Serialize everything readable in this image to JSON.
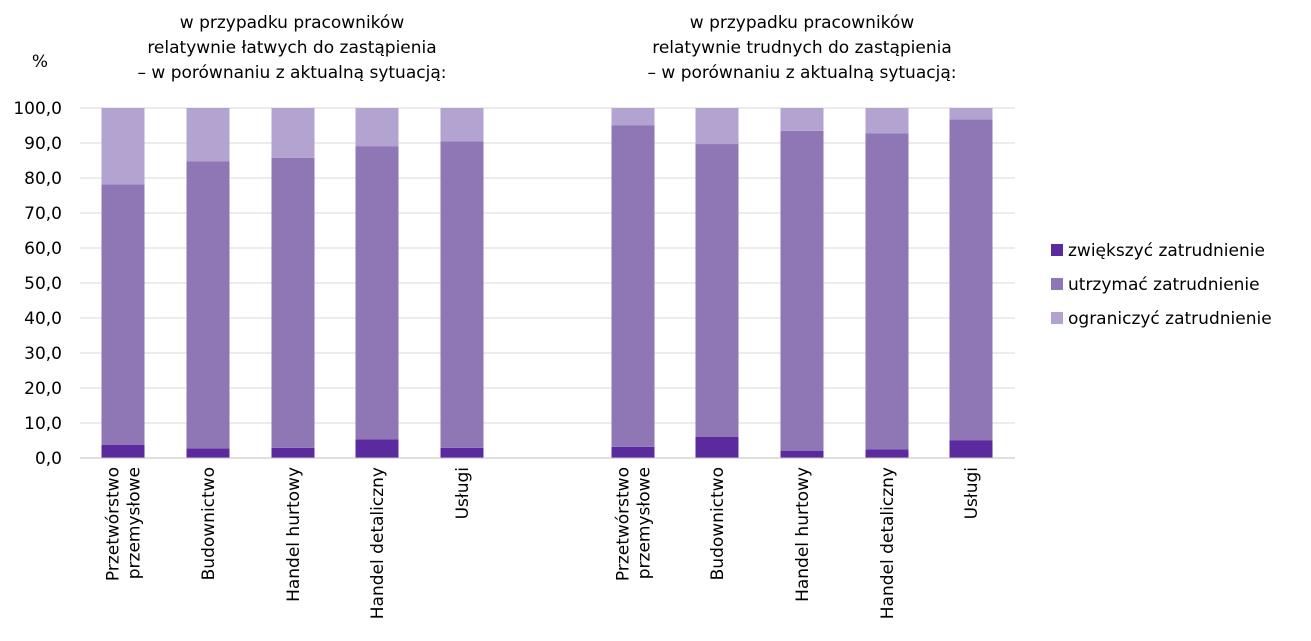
{
  "chart_data": {
    "type": "bar",
    "stacked": true,
    "y_unit_label": "%",
    "ylim": [
      0,
      100
    ],
    "y_ticks": [
      "0,0",
      "10,0",
      "20,0",
      "30,0",
      "40,0",
      "50,0",
      "60,0",
      "70,0",
      "80,0",
      "90,0",
      "100,0"
    ],
    "grid": true,
    "legend_position": "right",
    "series_meta": [
      {
        "name": "zwiększyć zatrudnienie",
        "color": "#5b2a9e"
      },
      {
        "name": "utrzymać zatrudnienie",
        "color": "#8f76b4"
      },
      {
        "name": "ograniczyć zatrudnienie",
        "color": "#b3a3d0"
      }
    ],
    "groups": [
      {
        "title": [
          "w przypadku pracowników",
          "relatywnie łatwych do zastąpienia",
          "– w porównaniu z aktualną sytuacją:"
        ],
        "categories": [
          [
            "Przetwórstwo",
            "przemysłowe"
          ],
          [
            "Budownictwo"
          ],
          [
            "Handel hurtowy"
          ],
          [
            "Handel detaliczny"
          ],
          [
            "Usługi"
          ]
        ],
        "series": [
          {
            "name": "zwiększyć zatrudnienie",
            "values": [
              3.8,
              2.7,
              2.9,
              5.3,
              2.9
            ]
          },
          {
            "name": "utrzymać zatrudnienie",
            "values": [
              74.4,
              82.1,
              82.9,
              83.8,
              87.6
            ]
          },
          {
            "name": "ograniczyć zatrudnienie",
            "values": [
              21.8,
              15.2,
              14.2,
              10.9,
              9.5
            ]
          }
        ]
      },
      {
        "title": [
          "w przypadku pracowników",
          "relatywnie trudnych do zastąpienia",
          "– w porównaniu z aktualną sytuacją:"
        ],
        "categories": [
          [
            "Przetwórstwo",
            "przemysłowe"
          ],
          [
            "Budownictwo"
          ],
          [
            "Handel hurtowy"
          ],
          [
            "Handel detaliczny"
          ],
          [
            "Usługi"
          ]
        ],
        "series": [
          {
            "name": "zwiększyć zatrudnienie",
            "values": [
              3.2,
              6.0,
              2.1,
              2.5,
              5.0
            ]
          },
          {
            "name": "utrzymać zatrudnienie",
            "values": [
              91.8,
              83.7,
              91.4,
              90.3,
              91.7
            ]
          },
          {
            "name": "ograniczyć zatrudnienie",
            "values": [
              5.0,
              10.3,
              6.5,
              7.2,
              3.3
            ]
          }
        ]
      }
    ]
  }
}
